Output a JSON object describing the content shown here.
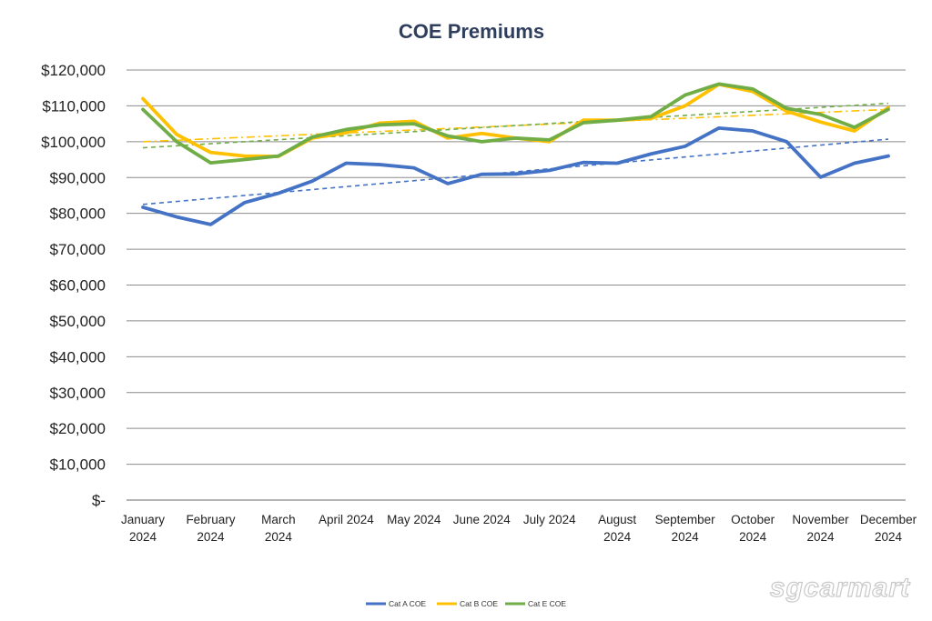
{
  "watermark": "sgcarmart",
  "chart_data": {
    "type": "line",
    "title": "COE Premiums",
    "xlabel": "",
    "ylabel": "",
    "ylim": [
      0,
      120000
    ],
    "yticks": [
      0,
      10000,
      20000,
      30000,
      40000,
      50000,
      60000,
      70000,
      80000,
      90000,
      100000,
      110000,
      120000
    ],
    "ytick_labels": [
      "$-",
      "$10,000",
      "$20,000",
      "$30,000",
      "$40,000",
      "$50,000",
      "$60,000",
      "$70,000",
      "$80,000",
      "$90,000",
      "$100,000",
      "$110,000",
      "$120,000"
    ],
    "grid": true,
    "legend_position": "bottom",
    "categories": [
      {
        "line1": "January",
        "line2": "2024",
        "index": 0
      },
      {
        "line1": "February",
        "line2": "2024",
        "index": 1
      },
      {
        "line1": "March",
        "line2": "2024",
        "index": 2
      },
      {
        "line1": "April 2024",
        "line2": "",
        "index": 3
      },
      {
        "line1": "May 2024",
        "line2": "",
        "index": 4
      },
      {
        "line1": "June 2024",
        "line2": "",
        "index": 5
      },
      {
        "line1": "July 2024",
        "line2": "",
        "index": 6
      },
      {
        "line1": "August",
        "line2": "2024",
        "index": 7
      },
      {
        "line1": "September",
        "line2": "2024",
        "index": 8
      },
      {
        "line1": "October",
        "line2": "2024",
        "index": 9
      },
      {
        "line1": "November",
        "line2": "2024",
        "index": 10
      },
      {
        "line1": "December",
        "line2": "2024",
        "index": 11
      }
    ],
    "x": [
      0,
      0.5,
      1,
      1.5,
      2,
      2.5,
      3,
      3.5,
      4,
      4.5,
      5,
      5.5,
      6,
      6.5,
      7,
      7.5,
      8,
      8.5,
      9,
      9.5,
      10,
      10.5,
      11
    ],
    "series": [
      {
        "name": "Cat A COE",
        "color": "#4472c4",
        "values": [
          81700,
          79000,
          76900,
          83000,
          85600,
          89000,
          94000,
          93600,
          92700,
          88300,
          90900,
          91000,
          92000,
          94200,
          94000,
          96600,
          98700,
          103800,
          103000,
          100000,
          90100,
          94000,
          96000
        ],
        "trendline": [
          82500,
          100700
        ]
      },
      {
        "name": "Cat B COE",
        "color": "#ffc000",
        "values": [
          112000,
          102000,
          97000,
          96000,
          95900,
          101000,
          102500,
          105200,
          105700,
          101000,
          102300,
          101000,
          100000,
          106000,
          106000,
          106500,
          110000,
          116000,
          114000,
          108500,
          105500,
          103000,
          109500
        ],
        "trendline": [
          100000,
          109000
        ]
      },
      {
        "name": "Cat E COE",
        "color": "#70ad47",
        "values": [
          109000,
          100000,
          94100,
          95000,
          96000,
          101300,
          103400,
          104700,
          105000,
          101600,
          100000,
          101000,
          100500,
          105300,
          106000,
          107000,
          113000,
          116100,
          114700,
          109300,
          107600,
          104000,
          109000
        ],
        "trendline": [
          98300,
          110700
        ]
      }
    ]
  }
}
